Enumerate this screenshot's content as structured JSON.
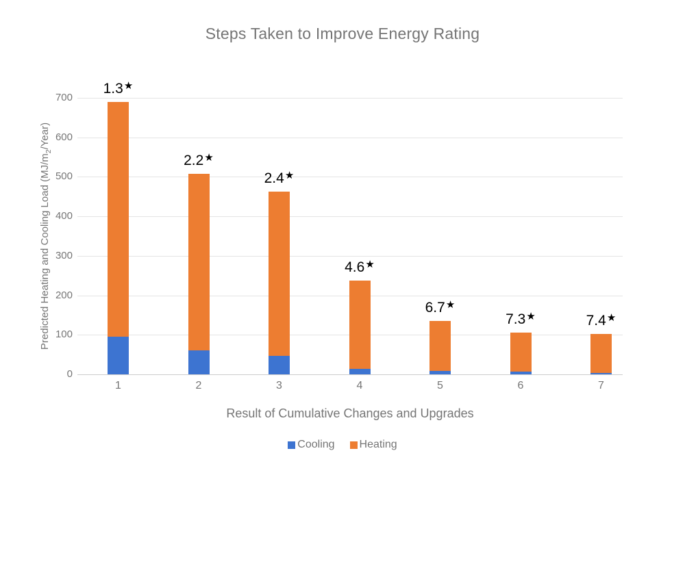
{
  "title": "Steps Taken to Improve Energy Rating",
  "axes": {
    "y_label_prefix": "Predicted Heating and Cooling Load (MJ/m",
    "y_label_sub": "2",
    "y_label_suffix": "/Year)",
    "x_label": "Result of Cumulative Changes and Upgrades"
  },
  "colors": {
    "cooling_blue": "#3D74D1",
    "heating_orange": "#ED7D31",
    "gridline": "#E4E4E4",
    "baseline": "#CCCCCC",
    "muted_text": "#757575",
    "label_text": "#000000"
  },
  "chart_data": {
    "type": "bar",
    "stacked": true,
    "title": "Steps Taken to Improve Energy Rating",
    "xlabel": "Result of Cumulative Changes and Upgrades",
    "ylabel": "Predicted Heating and Cooling Load (MJ/m2/Year)",
    "categories": [
      "1",
      "2",
      "3",
      "4",
      "5",
      "6",
      "7"
    ],
    "series": [
      {
        "name": "Cooling",
        "color": "#3D74D1",
        "values": [
          95,
          60,
          47,
          13,
          8,
          7,
          4
        ]
      },
      {
        "name": "Heating",
        "color": "#ED7D31",
        "values": [
          595,
          447,
          415,
          225,
          127,
          99,
          99
        ]
      }
    ],
    "totals": [
      690,
      507,
      462,
      238,
      135,
      106,
      103
    ],
    "bar_labels": [
      {
        "value": "1.3",
        "star": "★"
      },
      {
        "value": "2.2",
        "star": "★"
      },
      {
        "value": "2.4",
        "star": "★"
      },
      {
        "value": "4.6",
        "star": "★"
      },
      {
        "value": "6.7",
        "star": "★"
      },
      {
        "value": "7.3",
        "star": "★"
      },
      {
        "value": "7.4",
        "star": "★"
      }
    ],
    "yticks": [
      0,
      100,
      200,
      300,
      400,
      500,
      600,
      700
    ],
    "ylim": [
      0,
      700
    ],
    "grid": true,
    "legend_position": "bottom"
  }
}
